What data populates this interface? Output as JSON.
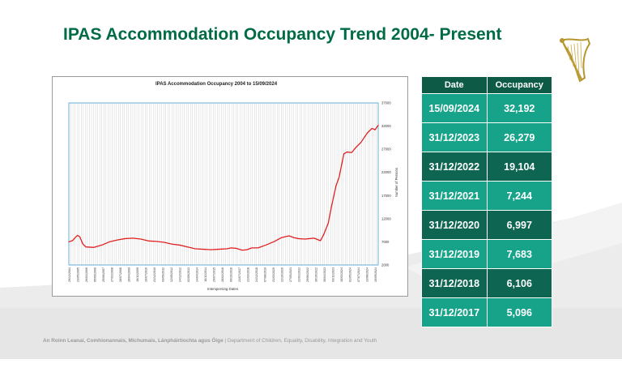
{
  "slide": {
    "title": "IPAS Accommodation Occupancy Trend 2004- Present",
    "footer_irish": "An Roinn Leanaí, Comhionannais, Míchumais, Lánpháirtíochta agus Óige",
    "footer_separator": " | ",
    "footer_english": "Department of Children, Equality, Disability, Integration and Youth",
    "logo_icon": "harp-icon",
    "colors": {
      "title": "#006b45",
      "table_header": "#0d5b46",
      "table_light": "#16a38a",
      "table_dark": "#0d6552",
      "line": "#e02020",
      "plot_border": "#5aa7d6"
    }
  },
  "table": {
    "headers": [
      "Date",
      "Occupancy"
    ],
    "rows": [
      {
        "date": "15/09/2024",
        "occupancy": "32,192"
      },
      {
        "date": "31/12/2023",
        "occupancy": "26,279"
      },
      {
        "date": "31/12/2022",
        "occupancy": "19,104"
      },
      {
        "date": "31/12/2021",
        "occupancy": "7,244"
      },
      {
        "date": "31/12/2020",
        "occupancy": "6,997"
      },
      {
        "date": "31/12/2019",
        "occupancy": "7,683"
      },
      {
        "date": "31/12/2018",
        "occupancy": "6,106"
      },
      {
        "date": "31/12/2017",
        "occupancy": "5,096"
      }
    ]
  },
  "chart_data": {
    "type": "line",
    "title": "IPAS Accommodation Occupancy 2004 to 15/09/2024",
    "xlabel": "Interspersing Dates",
    "ylabel": "Number of Persons",
    "ylim": [
      2000,
      37000
    ],
    "yticks": [
      2000,
      7000,
      12000,
      17000,
      22000,
      27000,
      32000,
      37000
    ],
    "y_axis_side": "right",
    "grid": "vertical",
    "x_tick_labels": [
      "29/12/2004",
      "23/05/2005",
      "26/01/2006",
      "05/09/2006",
      "25/06/2007",
      "27/01/2008",
      "28/07/2008",
      "26/04/2009",
      "19/11/2009",
      "10/07/2010",
      "21/12/2010",
      "03/09/2011",
      "12/05/2012",
      "24/12/2012",
      "02/09/2013",
      "14/04/2014",
      "16/11/2014",
      "29/07/2015",
      "28/02/2016",
      "09/10/2016",
      "21/07/2017",
      "21/03/2018",
      "24/12/2018",
      "07/08/2019",
      "21/03/2020",
      "22/10/2020",
      "27/05/2021",
      "21/01/2022",
      "29/06/2022",
      "30/10/2022",
      "30/04/2023",
      "03/11/2023",
      "18/03/2024",
      "01/05/2024",
      "07/07/2024",
      "13/08/2024",
      "15/09/2024"
    ],
    "x": [
      2004.9,
      2005.15,
      2005.3,
      2005.45,
      2005.6,
      2005.8,
      2006.0,
      2006.5,
      2007.0,
      2007.5,
      2008.0,
      2008.5,
      2009.0,
      2009.5,
      2010.0,
      2010.5,
      2011.0,
      2011.5,
      2012.0,
      2012.5,
      2013.0,
      2013.5,
      2014.0,
      2014.5,
      2015.0,
      2015.3,
      2015.6,
      2016.0,
      2016.3,
      2016.6,
      2017.0,
      2017.5,
      2018.0,
      2018.5,
      2019.0,
      2019.3,
      2019.6,
      2020.0,
      2020.3,
      2020.6,
      2021.0,
      2021.2,
      2021.5,
      2021.7,
      2022.0,
      2022.2,
      2022.5,
      2022.7,
      2023.0,
      2023.3,
      2023.6,
      2024.0,
      2024.3,
      2024.5,
      2024.7
    ],
    "values": [
      7000,
      7300,
      7900,
      8400,
      8100,
      6500,
      5900,
      5800,
      6300,
      7000,
      7400,
      7700,
      7800,
      7600,
      7200,
      7100,
      6900,
      6500,
      6300,
      5900,
      5500,
      5400,
      5300,
      5400,
      5500,
      5700,
      5600,
      5200,
      5300,
      5700,
      5700,
      6300,
      7000,
      7900,
      8300,
      7900,
      7700,
      7600,
      7700,
      7800,
      7244,
      8500,
      11000,
      14500,
      19104,
      21000,
      26000,
      26400,
      26279,
      27500,
      28500,
      30500,
      31500,
      31200,
      32192
    ],
    "color": "#e02020"
  }
}
